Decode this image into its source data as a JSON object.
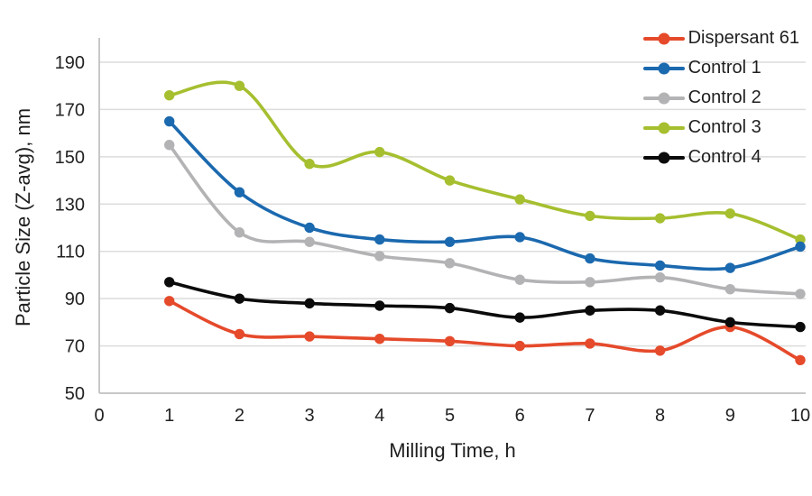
{
  "chart_data": {
    "type": "line",
    "title": "",
    "xlabel": "Milling Time, h",
    "ylabel": "Particle Size (Z-avg), nm",
    "x_ticks": [
      0,
      1,
      2,
      3,
      4,
      5,
      6,
      7,
      8,
      9,
      10
    ],
    "y_ticks": [
      50,
      70,
      90,
      110,
      130,
      150,
      170,
      190
    ],
    "xlim": [
      0,
      10
    ],
    "ylim": [
      50,
      190
    ],
    "grid": "horizontal",
    "line_style": "smooth",
    "marker": "circle",
    "legend_position": "top-right-inside",
    "x": [
      1,
      2,
      3,
      4,
      5,
      6,
      7,
      8,
      9,
      10
    ],
    "series": [
      {
        "name": "Dispersant 61",
        "color": "#e54a2b",
        "values": [
          89,
          75,
          74,
          73,
          72,
          70,
          71,
          68,
          78,
          64
        ]
      },
      {
        "name": "Control 1",
        "color": "#1b69af",
        "values": [
          165,
          135,
          120,
          115,
          114,
          116,
          107,
          104,
          103,
          112
        ]
      },
      {
        "name": "Control 2",
        "color": "#b3b3b5",
        "values": [
          155,
          118,
          114,
          108,
          105,
          98,
          97,
          99,
          94,
          92
        ]
      },
      {
        "name": "Control 3",
        "color": "#a5bf2f",
        "values": [
          176,
          180,
          147,
          152,
          140,
          132,
          125,
          124,
          126,
          115
        ]
      },
      {
        "name": "Control 4",
        "color": "#0b0b0b",
        "values": [
          97,
          90,
          88,
          87,
          86,
          82,
          85,
          85,
          80,
          78
        ]
      }
    ],
    "colors": {
      "grid": "#dcdcdc",
      "axis": "#c8c8c8",
      "text": "#222222",
      "background": "#ffffff"
    }
  }
}
